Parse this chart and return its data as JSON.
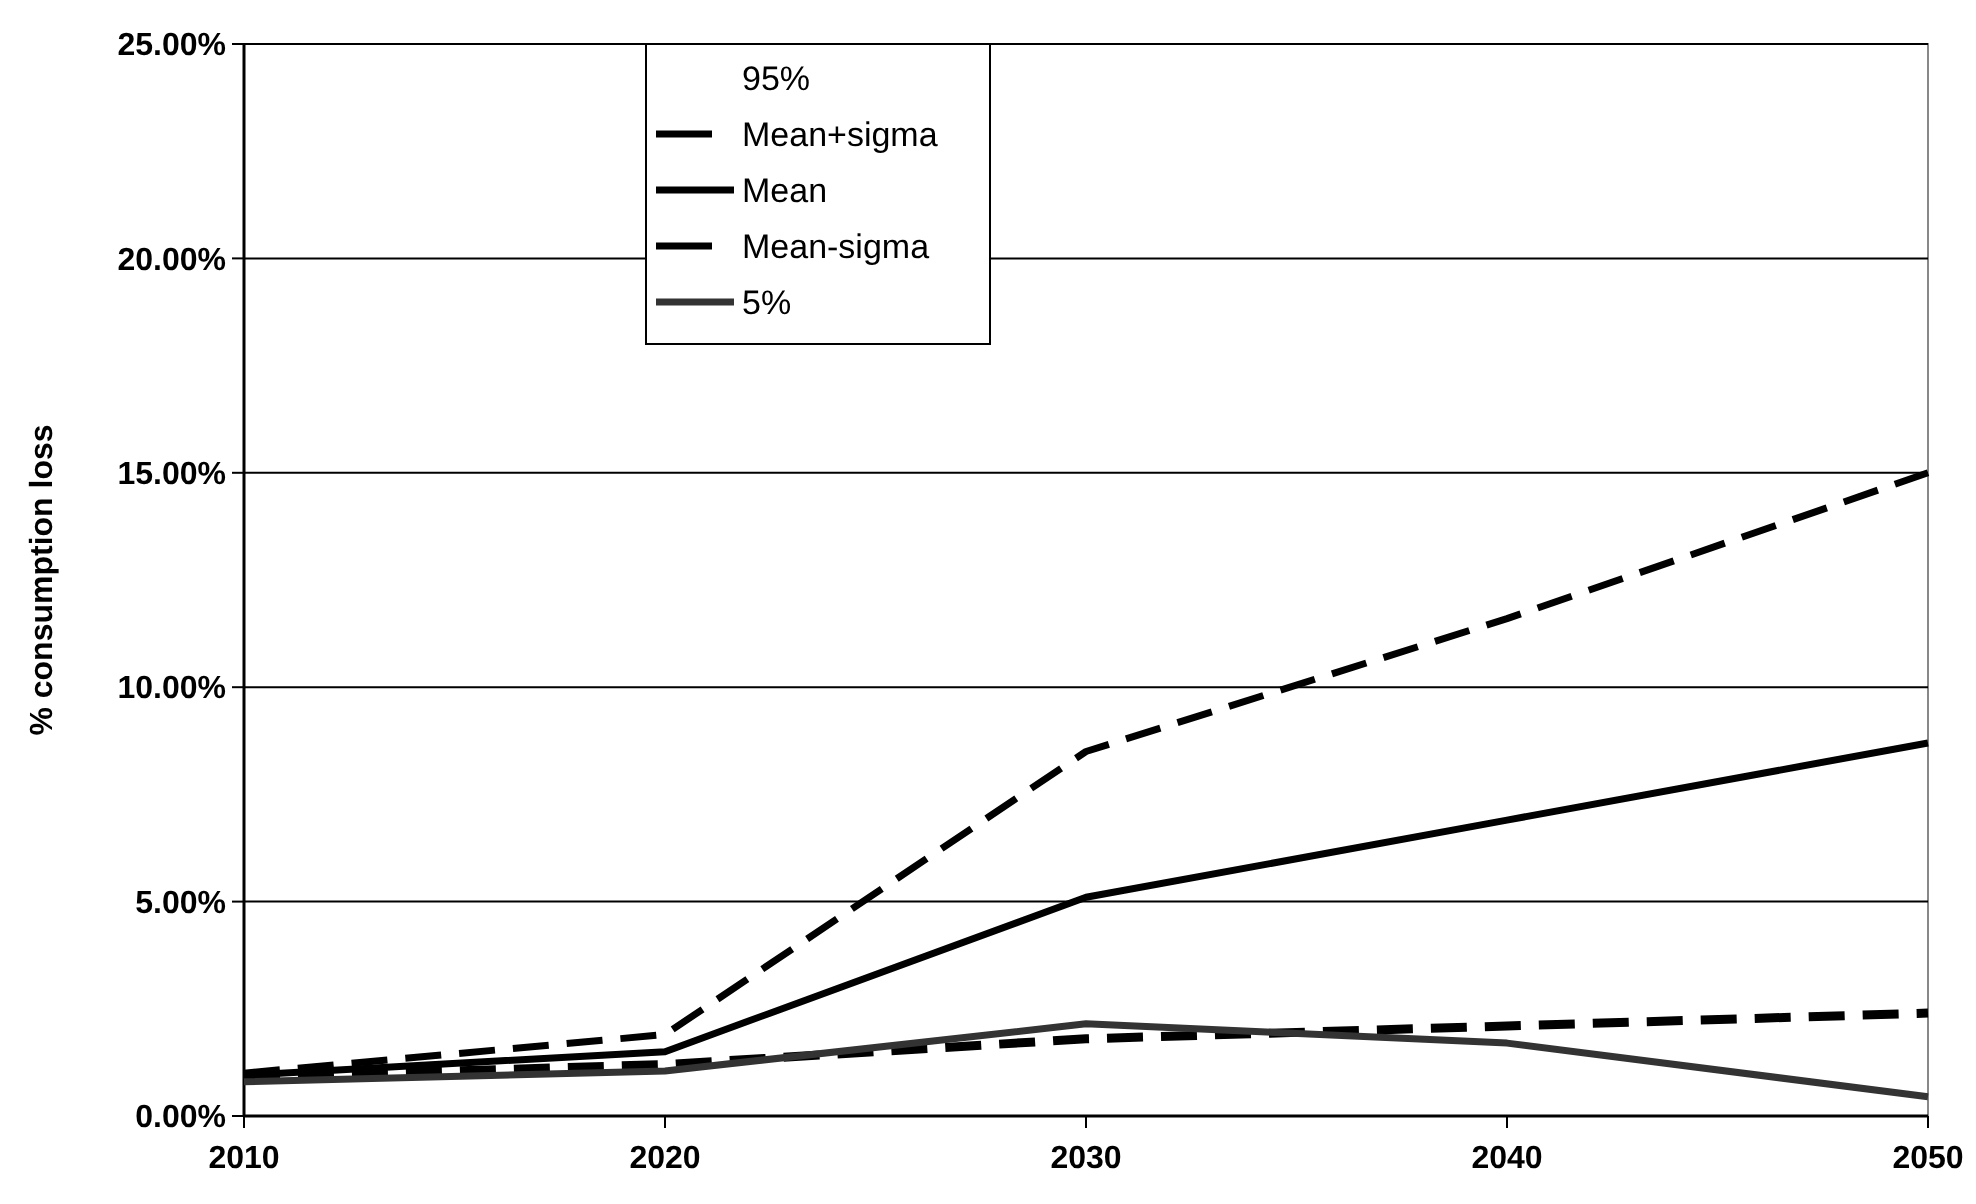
{
  "chart_data": {
    "type": "line",
    "ylabel": "% consumption loss",
    "x": [
      2010,
      2020,
      2030,
      2040,
      2050
    ],
    "xlim": [
      2010,
      2050
    ],
    "xticks": [
      2010,
      2020,
      2030,
      2040,
      2050
    ],
    "ylim": [
      0,
      25
    ],
    "yticks": [
      {
        "value": 0,
        "label": "0.00%"
      },
      {
        "value": 5,
        "label": "5.00%"
      },
      {
        "value": 10,
        "label": "10.00%"
      },
      {
        "value": 15,
        "label": "15.00%"
      },
      {
        "value": 20,
        "label": "20.00%"
      },
      {
        "value": 25,
        "label": "25.00%"
      }
    ],
    "grid": "y",
    "legend": "top",
    "marker": "none",
    "series": [
      {
        "name": "95%",
        "values": [
          null,
          null,
          null,
          null,
          null
        ]
      },
      {
        "name": "Mean+sigma",
        "color": "#000000",
        "line_style": "dashed",
        "values": [
          1.0,
          1.9,
          8.5,
          11.6,
          15.0
        ]
      },
      {
        "name": "Mean",
        "color": "#000000",
        "line_style": "solid",
        "values": [
          0.95,
          1.5,
          5.1,
          6.9,
          8.7
        ]
      },
      {
        "name": "Mean-sigma",
        "color": "#000000",
        "line_style": "dashed",
        "values": [
          0.9,
          1.2,
          1.8,
          2.1,
          2.4
        ]
      },
      {
        "name": "5%",
        "color": "#333333",
        "line_style": "solid",
        "values": [
          0.8,
          1.05,
          2.15,
          1.7,
          0.45
        ]
      }
    ]
  }
}
